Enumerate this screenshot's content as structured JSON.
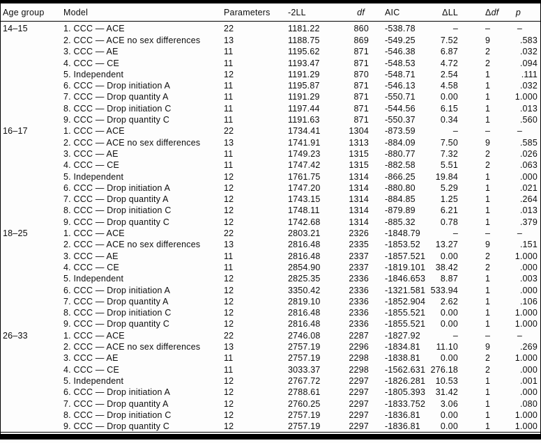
{
  "table": {
    "columns": [
      {
        "key": "age",
        "label": "Age group"
      },
      {
        "key": "model",
        "label": "Model"
      },
      {
        "key": "params",
        "label": "Parameters"
      },
      {
        "key": "neg2ll",
        "label": "-2LL"
      },
      {
        "key": "df",
        "label": "df"
      },
      {
        "key": "aic",
        "label": "AIC"
      },
      {
        "key": "dll",
        "prefix": "Δ",
        "label": "LL"
      },
      {
        "key": "ddf",
        "prefix": "Δ",
        "label": "df"
      },
      {
        "key": "p",
        "label": "p"
      }
    ],
    "groups": [
      {
        "age_group": "14–15",
        "rows": [
          {
            "model": "1. CCC — ACE",
            "params": "22",
            "neg2ll": "1181.22",
            "df": "860",
            "aic": "-538.78",
            "dll": "–",
            "ddf": "–",
            "p": "–"
          },
          {
            "model": "2. CCC — ACE no sex differences",
            "params": "13",
            "neg2ll": "1188.75",
            "df": "869",
            "aic": "-549.25",
            "dll": "7.52",
            "ddf": "9",
            "p": ".583"
          },
          {
            "model": "3. CCC — AE",
            "params": "11",
            "neg2ll": "1195.62",
            "df": "871",
            "aic": "-546.38",
            "dll": "6.87",
            "ddf": "2",
            "p": ".032"
          },
          {
            "model": "4. CCC — CE",
            "params": "11",
            "neg2ll": "1193.47",
            "df": "871",
            "aic": "-548.53",
            "dll": "4.72",
            "ddf": "2",
            "p": ".094"
          },
          {
            "model": "5. Independent",
            "params": "12",
            "neg2ll": "1191.29",
            "df": "870",
            "aic": "-548.71",
            "dll": "2.54",
            "ddf": "1",
            "p": ".111"
          },
          {
            "model": "6. CCC — Drop initiation A",
            "params": "11",
            "neg2ll": "1195.87",
            "df": "871",
            "aic": "-546.13",
            "dll": "4.58",
            "ddf": "1",
            "p": ".032"
          },
          {
            "model": "7. CCC — Drop quantity A",
            "params": "11",
            "neg2ll": "1191.29",
            "df": "871",
            "aic": "-550.71",
            "dll": "0.00",
            "ddf": "1",
            "p": "1.000"
          },
          {
            "model": "8. CCC — Drop initiation C",
            "params": "11",
            "neg2ll": "1197.44",
            "df": "871",
            "aic": "-544.56",
            "dll": "6.15",
            "ddf": "1",
            "p": ".013"
          },
          {
            "model": "9. CCC — Drop quantity C",
            "params": "11",
            "neg2ll": "1191.63",
            "df": "871",
            "aic": "-550.37",
            "dll": "0.34",
            "ddf": "1",
            "p": ".560"
          }
        ]
      },
      {
        "age_group": "16–17",
        "rows": [
          {
            "model": "1. CCC — ACE",
            "params": "22",
            "neg2ll": "1734.41",
            "df": "1304",
            "aic": "-873.59",
            "dll": "–",
            "ddf": "–",
            "p": "–"
          },
          {
            "model": "2. CCC — ACE no sex differences",
            "params": "13",
            "neg2ll": "1741.91",
            "df": "1313",
            "aic": "-884.09",
            "dll": "7.50",
            "ddf": "9",
            "p": ".585"
          },
          {
            "model": "3. CCC — AE",
            "params": "11",
            "neg2ll": "1749.23",
            "df": "1315",
            "aic": "-880.77",
            "dll": "7.32",
            "ddf": "2",
            "p": ".026"
          },
          {
            "model": "4. CCC — CE",
            "params": "11",
            "neg2ll": "1747.42",
            "df": "1315",
            "aic": "-882.58",
            "dll": "5.51",
            "ddf": "2",
            "p": ".063"
          },
          {
            "model": "5. Independent",
            "params": "12",
            "neg2ll": "1761.75",
            "df": "1314",
            "aic": "-866.25",
            "dll": "19.84",
            "ddf": "1",
            "p": ".000"
          },
          {
            "model": "6. CCC — Drop initiation A",
            "params": "12",
            "neg2ll": "1747.20",
            "df": "1314",
            "aic": "-880.80",
            "dll": "5.29",
            "ddf": "1",
            "p": ".021"
          },
          {
            "model": "7. CCC — Drop quantity A",
            "params": "12",
            "neg2ll": "1743.15",
            "df": "1314",
            "aic": "-884.85",
            "dll": "1.25",
            "ddf": "1",
            "p": ".264"
          },
          {
            "model": "8. CCC — Drop initiation C",
            "params": "12",
            "neg2ll": "1748.11",
            "df": "1314",
            "aic": "-879.89",
            "dll": "6.21",
            "ddf": "1",
            "p": ".013"
          },
          {
            "model": "9. CCC — Drop quantity C",
            "params": "12",
            "neg2ll": "1742.68",
            "df": "1314",
            "aic": "-885.32",
            "dll": "0.78",
            "ddf": "1",
            "p": ".379"
          }
        ]
      },
      {
        "age_group": "18–25",
        "rows": [
          {
            "model": "1. CCC — ACE",
            "params": "22",
            "neg2ll": "2803.21",
            "df": "2326",
            "aic": "-1848.79",
            "dll": "–",
            "ddf": "–",
            "p": "–"
          },
          {
            "model": "2. CCC — ACE no sex differences",
            "params": "13",
            "neg2ll": "2816.48",
            "df": "2335",
            "aic": "-1853.52",
            "dll": "13.27",
            "ddf": "9",
            "p": ".151"
          },
          {
            "model": "3. CCC — AE",
            "params": "11",
            "neg2ll": "2816.48",
            "df": "2337",
            "aic": "-1857.521",
            "dll": "0.00",
            "ddf": "2",
            "p": "1.000"
          },
          {
            "model": "4. CCC — CE",
            "params": "11",
            "neg2ll": "2854.90",
            "df": "2337",
            "aic": "-1819.101",
            "dll": "38.42",
            "ddf": "2",
            "p": ".000"
          },
          {
            "model": "5. Independent",
            "params": "12",
            "neg2ll": "2825.35",
            "df": "2336",
            "aic": "-1846.653",
            "dll": "8.87",
            "ddf": "1",
            "p": ".003"
          },
          {
            "model": "6. CCC — Drop initiation A",
            "params": "12",
            "neg2ll": "3350.42",
            "df": "2336",
            "aic": "-1321.581",
            "dll": "533.94",
            "ddf": "1",
            "p": ".000"
          },
          {
            "model": "7. CCC — Drop quantity A",
            "params": "12",
            "neg2ll": "2819.10",
            "df": "2336",
            "aic": "-1852.904",
            "dll": "2.62",
            "ddf": "1",
            "p": ".106"
          },
          {
            "model": "8. CCC — Drop initiation C",
            "params": "12",
            "neg2ll": "2816.48",
            "df": "2336",
            "aic": "-1855.521",
            "dll": "0.00",
            "ddf": "1",
            "p": "1.000"
          },
          {
            "model": "9. CCC — Drop quantity C",
            "params": "12",
            "neg2ll": "2816.48",
            "df": "2336",
            "aic": "-1855.521",
            "dll": "0.00",
            "ddf": "1",
            "p": "1.000"
          }
        ]
      },
      {
        "age_group": "26–33",
        "rows": [
          {
            "model": "1. CCC — ACE",
            "params": "22",
            "neg2ll": "2746.08",
            "df": "2287",
            "aic": "-1827.92",
            "dll": "–",
            "ddf": "–",
            "p": "–"
          },
          {
            "model": "2. CCC — ACE no sex differences",
            "params": "13",
            "neg2ll": "2757.19",
            "df": "2296",
            "aic": "-1834.81",
            "dll": "11.10",
            "ddf": "9",
            "p": ".269"
          },
          {
            "model": "3. CCC — AE",
            "params": "11",
            "neg2ll": "2757.19",
            "df": "2298",
            "aic": "-1838.81",
            "dll": "0.00",
            "ddf": "2",
            "p": "1.000"
          },
          {
            "model": "4. CCC — CE",
            "params": "11",
            "neg2ll": "3033.37",
            "df": "2298",
            "aic": "-1562.631",
            "dll": "276.18",
            "ddf": "2",
            "p": ".000"
          },
          {
            "model": "5. Independent",
            "params": "12",
            "neg2ll": "2767.72",
            "df": "2297",
            "aic": "-1826.281",
            "dll": "10.53",
            "ddf": "1",
            "p": ".001"
          },
          {
            "model": "6. CCC — Drop initiation A",
            "params": "12",
            "neg2ll": "2788.61",
            "df": "2297",
            "aic": "-1805.393",
            "dll": "31.42",
            "ddf": "1",
            "p": ".000"
          },
          {
            "model": "7. CCC — Drop quantity A",
            "params": "12",
            "neg2ll": "2760.25",
            "df": "2297",
            "aic": "-1833.752",
            "dll": "3.06",
            "ddf": "1",
            "p": ".080"
          },
          {
            "model": "8. CCC — Drop initiation C",
            "params": "12",
            "neg2ll": "2757.19",
            "df": "2297",
            "aic": "-1836.81",
            "dll": "0.00",
            "ddf": "1",
            "p": "1.000"
          },
          {
            "model": "9. CCC — Drop quantity C",
            "params": "12",
            "neg2ll": "2757.19",
            "df": "2297",
            "aic": "-1836.81",
            "dll": "0.00",
            "ddf": "1",
            "p": "1.000"
          }
        ]
      }
    ],
    "colors": {
      "rule": "#000000",
      "text": "#0c0c0c",
      "background": "#fdfdfd"
    }
  }
}
